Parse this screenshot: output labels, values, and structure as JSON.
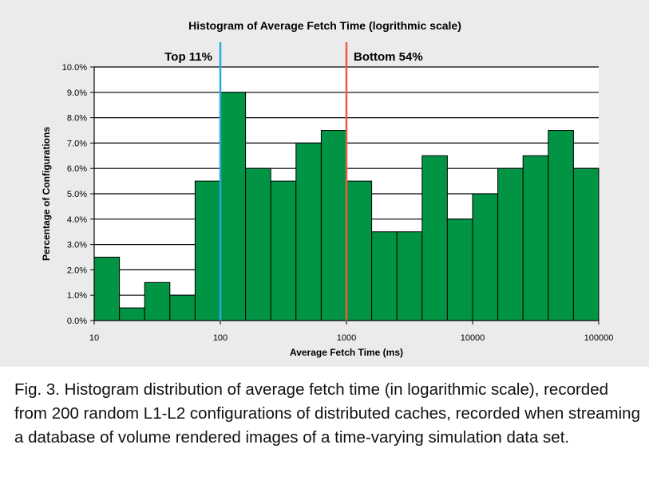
{
  "chart_data": {
    "type": "bar",
    "title": "Histogram of Average Fetch Time (logrithmic scale)",
    "xlabel": "Average Fetch Time (ms)",
    "ylabel": "Percentage of Configurations",
    "x_scale": "log",
    "xlim": [
      10,
      100000
    ],
    "ylim": [
      0,
      10
    ],
    "x_ticks": [
      10,
      100,
      1000,
      10000,
      100000
    ],
    "x_tick_labels": [
      "10",
      "100",
      "1000",
      "10000",
      "100000"
    ],
    "y_ticks": [
      0,
      1,
      2,
      3,
      4,
      5,
      6,
      7,
      8,
      9,
      10
    ],
    "y_tick_labels": [
      "0.0%",
      "1.0%",
      "2.0%",
      "3.0%",
      "4.0%",
      "5.0%",
      "6.0%",
      "7.0%",
      "8.0%",
      "9.0%",
      "10.0%"
    ],
    "bins_per_decade": 5,
    "values": [
      2.5,
      0.5,
      1.5,
      1.0,
      5.5,
      9.0,
      6.0,
      5.5,
      7.0,
      7.5,
      5.5,
      3.5,
      3.5,
      6.5,
      4.0,
      5.0,
      6.0,
      6.5,
      7.5,
      6.0
    ],
    "bar_color": "#009444",
    "grid": true,
    "markers": [
      {
        "label": "Top 11%",
        "x": 100,
        "color": "#29a9e0"
      },
      {
        "label": "Bottom 54%",
        "x": 1000,
        "color": "#ef5a45"
      }
    ]
  },
  "caption": "Fig. 3. Histogram distribution of average fetch time (in logarithmic scale), recorded from 200 random L1-L2 configurations of distributed caches, recorded when streaming a database of volume rendered images of a time-varying simulation data set."
}
